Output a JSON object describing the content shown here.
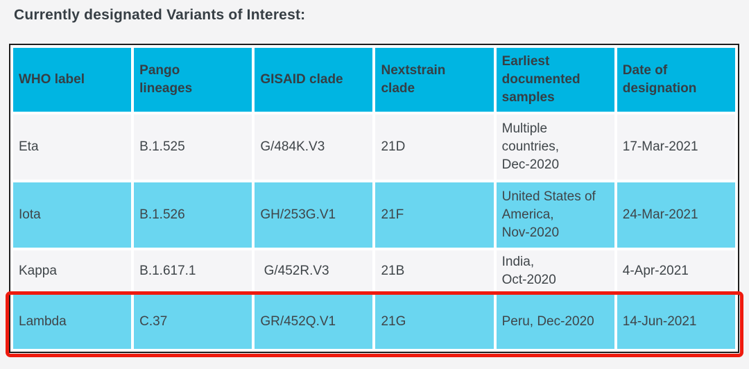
{
  "page": {
    "title": "Currently designated Variants of Interest:"
  },
  "colors": {
    "header_bg": "#00b5e2",
    "alt_row_bg": "#6ad6f0",
    "plain_row_bg": "#f5f5f7",
    "page_bg": "#f4f4f5",
    "table_border": "#1e1e1e",
    "text": "#3f4549",
    "highlight_border": "#ee1a0e"
  },
  "table": {
    "columns": [
      "WHO label",
      "Pango\nlineages",
      "GISAID clade",
      "Nextstrain\nclade",
      "Earliest\ndocumented\nsamples",
      "Date of\ndesignation"
    ],
    "rows": [
      {
        "who_label": "Eta",
        "pango_lineages": "B.1.525",
        "gisaid_clade": "G/484K.V3",
        "nextstrain_clade": "21D",
        "earliest_documented_samples": "Multiple\ncountries,\nDec-2020",
        "date_of_designation": "17-Mar-2021",
        "highlighted": false
      },
      {
        "who_label": "Iota",
        "pango_lineages": "B.1.526",
        "gisaid_clade": "GH/253G.V1",
        "nextstrain_clade": "21F",
        "earliest_documented_samples": "United States of\nAmerica,\nNov-2020",
        "date_of_designation": "24-Mar-2021",
        "highlighted": false
      },
      {
        "who_label": "Kappa",
        "pango_lineages": "B.1.617.1",
        "gisaid_clade": " G/452R.V3",
        "nextstrain_clade": "21B",
        "earliest_documented_samples": "India,\nOct-2020",
        "date_of_designation": "4-Apr-2021",
        "highlighted": false
      },
      {
        "who_label": "Lambda",
        "pango_lineages": "C.37",
        "gisaid_clade": "GR/452Q.V1",
        "nextstrain_clade": "21G",
        "earliest_documented_samples": "Peru, Dec-2020",
        "date_of_designation": "14-Jun-2021",
        "highlighted": true
      }
    ]
  }
}
